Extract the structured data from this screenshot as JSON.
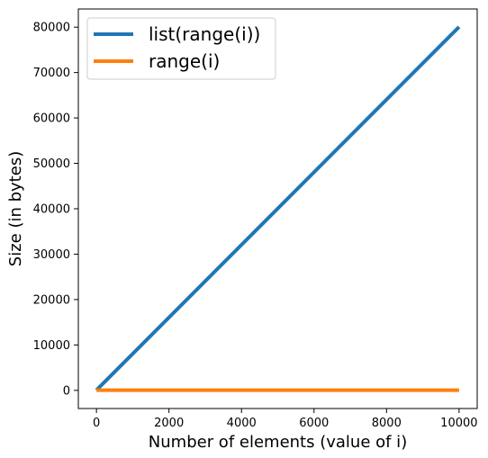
{
  "chart_data": {
    "type": "line",
    "title": "",
    "xlabel": "Number of elements (value of i)",
    "ylabel": "Size (in bytes)",
    "xlim": [
      -500,
      10500
    ],
    "ylim": [
      -4000,
      84000
    ],
    "xticks": [
      0,
      2000,
      4000,
      6000,
      8000,
      10000
    ],
    "xtick_labels": [
      "0",
      "2000",
      "4000",
      "6000",
      "8000",
      "10000"
    ],
    "yticks": [
      0,
      10000,
      20000,
      30000,
      40000,
      50000,
      60000,
      70000,
      80000
    ],
    "ytick_labels": [
      "0",
      "10000",
      "20000",
      "30000",
      "40000",
      "50000",
      "60000",
      "70000",
      "80000"
    ],
    "grid": false,
    "legend_position": "top-left",
    "series": [
      {
        "name": "list(range(i))",
        "color": "#1f77b4",
        "x": [
          0,
          10000
        ],
        "y": [
          56,
          80056
        ]
      },
      {
        "name": "range(i)",
        "color": "#ff7f0e",
        "x": [
          0,
          10000
        ],
        "y": [
          48,
          48
        ]
      }
    ]
  }
}
